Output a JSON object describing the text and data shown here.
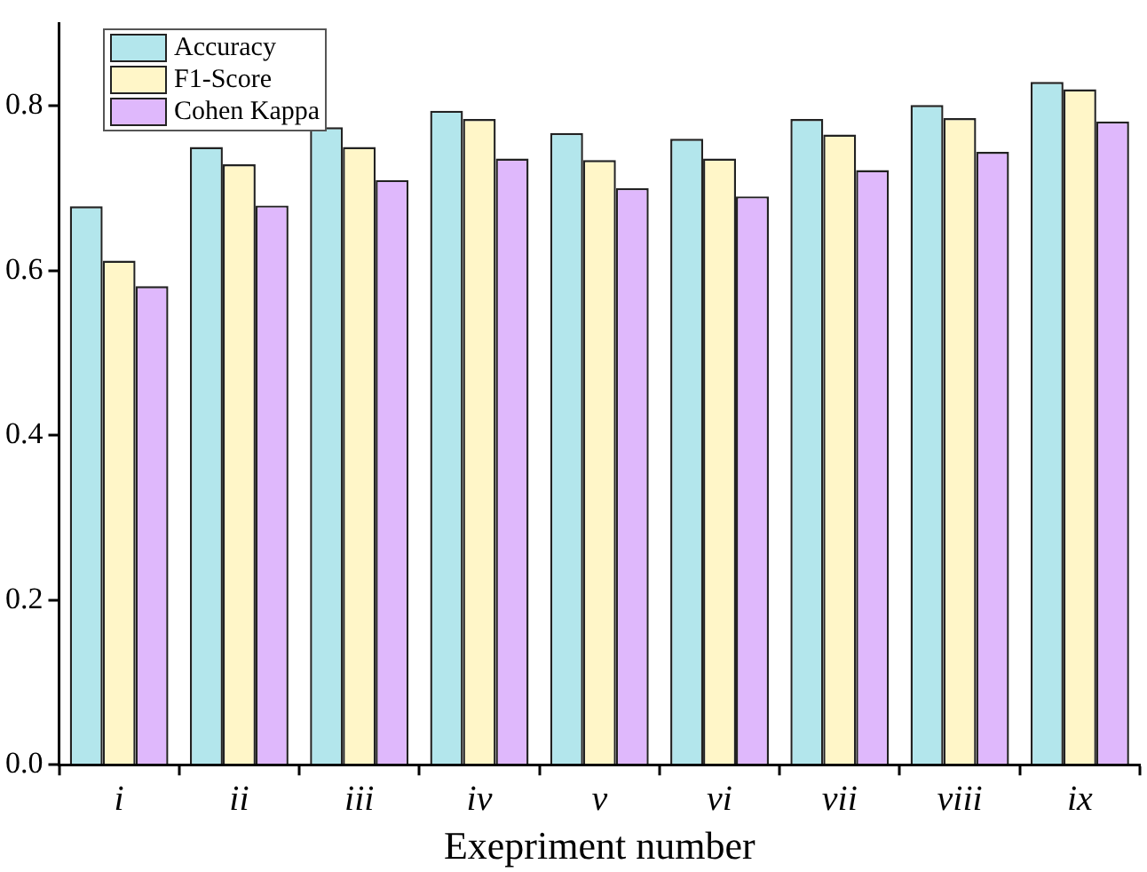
{
  "chart_data": {
    "type": "bar",
    "xlabel": "Exepriment number",
    "categories": [
      "i",
      "ii",
      "iii",
      "iv",
      "v",
      "vi",
      "vii",
      "viii",
      "ix"
    ],
    "series": [
      {
        "name": "Accuracy",
        "color": "#b3e6ec",
        "values": [
          0.678,
          0.75,
          0.774,
          0.794,
          0.767,
          0.76,
          0.784,
          0.801,
          0.829
        ]
      },
      {
        "name": "F1-Score",
        "color": "#fff6c8",
        "values": [
          0.612,
          0.729,
          0.75,
          0.784,
          0.734,
          0.736,
          0.765,
          0.785,
          0.82
        ]
      },
      {
        "name": "Cohen Kappa",
        "color": "#dfb8fc",
        "values": [
          0.581,
          0.679,
          0.71,
          0.736,
          0.7,
          0.69,
          0.722,
          0.744,
          0.781
        ]
      }
    ],
    "ylim": [
      0,
      0.9
    ],
    "yticks": [
      {
        "value": 0,
        "label": "0.0"
      },
      {
        "value": 0.2,
        "label": "0.2"
      },
      {
        "value": 0.4,
        "label": "0.4"
      },
      {
        "value": 0.6,
        "label": "0.6"
      },
      {
        "value": 0.8,
        "label": "0.8"
      }
    ],
    "grid": false,
    "legend": "top left"
  }
}
